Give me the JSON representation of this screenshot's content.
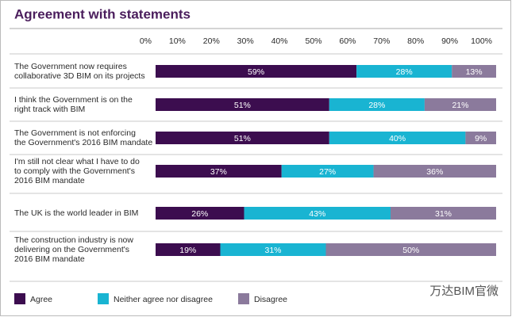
{
  "chart_data": {
    "type": "stacked_barh",
    "title": "Agreement with statements",
    "categories": [
      [
        "The Government now requires",
        "collaborative 3D BIM on its projects"
      ],
      [
        "I think the Government is on the",
        "right track with BIM"
      ],
      [
        "The Government is not enforcing",
        "the Government's 2016 BIM mandate"
      ],
      [
        "I'm still not clear what I have to do",
        "to comply with the Government's",
        "2016 BIM mandate"
      ],
      [
        "The UK is the world leader in BIM"
      ],
      [
        "The construction industry is now",
        "delivering on the Government's",
        "2016 BIM mandate"
      ]
    ],
    "series": [
      {
        "name": "Agree",
        "color": "#3c0d4f",
        "values": [
          59,
          51,
          51,
          37,
          26,
          19
        ],
        "value_labels": [
          "59%",
          "51%",
          "51%",
          "37%",
          "26%",
          "19%"
        ]
      },
      {
        "name": "Neither agree nor disagree",
        "color": "#19b4d2",
        "values": [
          28,
          28,
          40,
          27,
          43,
          31
        ],
        "value_labels": [
          "28%",
          "28%",
          "40%",
          "27%",
          "43%",
          "31%"
        ]
      },
      {
        "name": "Disagree",
        "color": "#8b7a9c",
        "values": [
          13,
          21,
          9,
          36,
          31,
          50
        ],
        "value_labels": [
          "13%",
          "21%",
          "9%",
          "36%",
          "31%",
          "50%"
        ]
      }
    ],
    "xlim": [
      0,
      100
    ],
    "xticks": [
      {
        "value": 0,
        "label": "0%"
      },
      {
        "value": 10,
        "label": "10%"
      },
      {
        "value": 20,
        "label": "20%"
      },
      {
        "value": 30,
        "label": "30%"
      },
      {
        "value": 40,
        "label": "40%"
      },
      {
        "value": 50,
        "label": "50%"
      },
      {
        "value": 60,
        "label": "60%"
      },
      {
        "value": 70,
        "label": "70%"
      },
      {
        "value": 80,
        "label": "80%"
      },
      {
        "value": 90,
        "label": "90%"
      },
      {
        "value": 100,
        "label": "100%"
      }
    ],
    "watermark": "万达BIM官微"
  }
}
